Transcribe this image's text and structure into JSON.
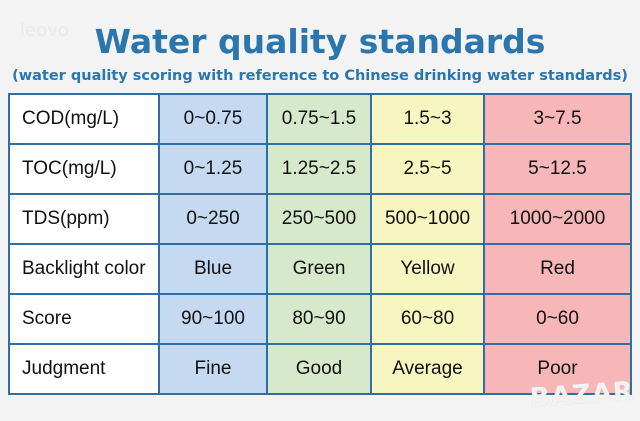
{
  "title": "Water quality standards",
  "subtitle": "(water quality scoring with reference to Chinese drinking water standards)",
  "watermarks": [
    "leovo",
    "BAZAR"
  ],
  "colors": {
    "title": "#2a76ad",
    "border": "#2f6fa5",
    "blue": "#c5d9f1",
    "green": "#d6eacb",
    "yellow": "#f8f6c0",
    "red": "#f7b6b8"
  },
  "rows": [
    {
      "label": "COD(mg/L)",
      "cells": [
        "0~0.75",
        "0.75~1.5",
        "1.5~3",
        "3~7.5"
      ]
    },
    {
      "label": "TOC(mg/L)",
      "cells": [
        "0~1.25",
        "1.25~2.5",
        "2.5~5",
        "5~12.5"
      ]
    },
    {
      "label": "TDS(ppm)",
      "cells": [
        "0~250",
        "250~500",
        "500~1000",
        "1000~2000"
      ]
    },
    {
      "label": "Backlight color",
      "cells": [
        "Blue",
        "Green",
        "Yellow",
        "Red"
      ]
    },
    {
      "label": "Score",
      "cells": [
        "90~100",
        "80~90",
        "60~80",
        "0~60"
      ]
    },
    {
      "label": "Judgment",
      "cells": [
        "Fine",
        "Good",
        "Average",
        "Poor"
      ]
    }
  ]
}
